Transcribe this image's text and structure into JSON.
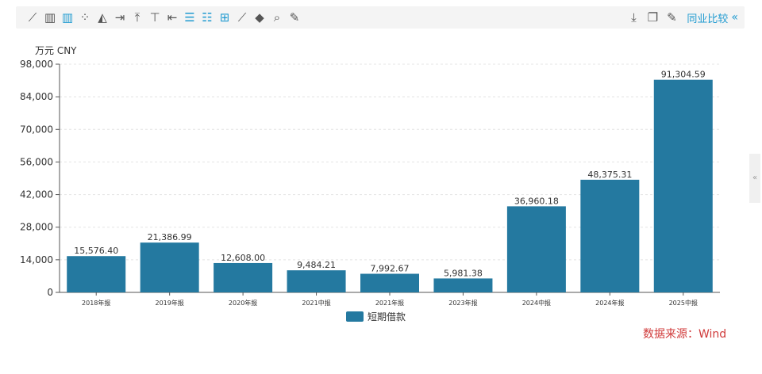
{
  "toolbar": {
    "left_icons": [
      {
        "name": "line-chart-icon",
        "glyph": "⟋",
        "active": false
      },
      {
        "name": "bar-chart-icon",
        "glyph": "▥",
        "active": false
      },
      {
        "name": "column-chart-icon",
        "glyph": "▥",
        "active": true
      },
      {
        "name": "scatter-chart-icon",
        "glyph": "⁘",
        "active": false
      },
      {
        "name": "area-chart-icon",
        "glyph": "◭",
        "active": false
      },
      {
        "name": "align-right-icon",
        "glyph": "⇥",
        "active": false
      },
      {
        "name": "align-top-icon",
        "glyph": "⤒",
        "active": false
      },
      {
        "name": "list-tree-icon",
        "glyph": "⊤",
        "active": false
      },
      {
        "name": "align-left-icon",
        "glyph": "⇤",
        "active": false
      },
      {
        "name": "list-active-icon",
        "glyph": "☰",
        "active": true
      },
      {
        "name": "indent-list-icon",
        "glyph": "☷",
        "active": true
      },
      {
        "name": "add-box-icon",
        "glyph": "⊞",
        "active": true
      },
      {
        "name": "trend-line-icon",
        "glyph": "⟋",
        "active": false
      },
      {
        "name": "fill-color-icon",
        "glyph": "◆",
        "active": false
      },
      {
        "name": "zoom-icon",
        "glyph": "⌕",
        "active": false
      },
      {
        "name": "wrench-icon",
        "glyph": "✎",
        "active": false
      }
    ],
    "right_icons": [
      {
        "name": "download-icon",
        "glyph": "⤓"
      },
      {
        "name": "copy-icon",
        "glyph": "❐"
      },
      {
        "name": "edit-icon",
        "glyph": "✎"
      }
    ],
    "industry_compare_label": "同业比较",
    "collapse_glyph": "«"
  },
  "side_handle_glyph": "«",
  "source_note": "数据来源：Wind",
  "chart_data": {
    "type": "bar",
    "unit_label": "万元  CNY",
    "categories": [
      "2018年报",
      "2019年报",
      "2020年报",
      "2021中报",
      "2021年报",
      "2023年报",
      "2024中报",
      "2024年报",
      "2025中报"
    ],
    "series": [
      {
        "name": "短期借款",
        "values": [
          15576.4,
          21386.99,
          12608.0,
          9484.21,
          7992.67,
          5981.38,
          36960.18,
          48375.31,
          91304.59
        ],
        "value_labels": [
          "15,576.40",
          "21,386.99",
          "12,608.00",
          "9,484.21",
          "7,992.67",
          "5,981.38",
          "36,960.18",
          "48,375.31",
          "91,304.59"
        ]
      }
    ],
    "y_ticks": [
      0,
      14000,
      28000,
      42000,
      56000,
      70000,
      84000,
      98000
    ],
    "y_tick_labels": [
      "0",
      "14,000",
      "28,000",
      "42,000",
      "56,000",
      "70,000",
      "84,000",
      "98,000"
    ],
    "ylim": [
      0,
      98000
    ],
    "grid": true,
    "legend_position": "bottom",
    "bar_color": "#2479a0"
  }
}
